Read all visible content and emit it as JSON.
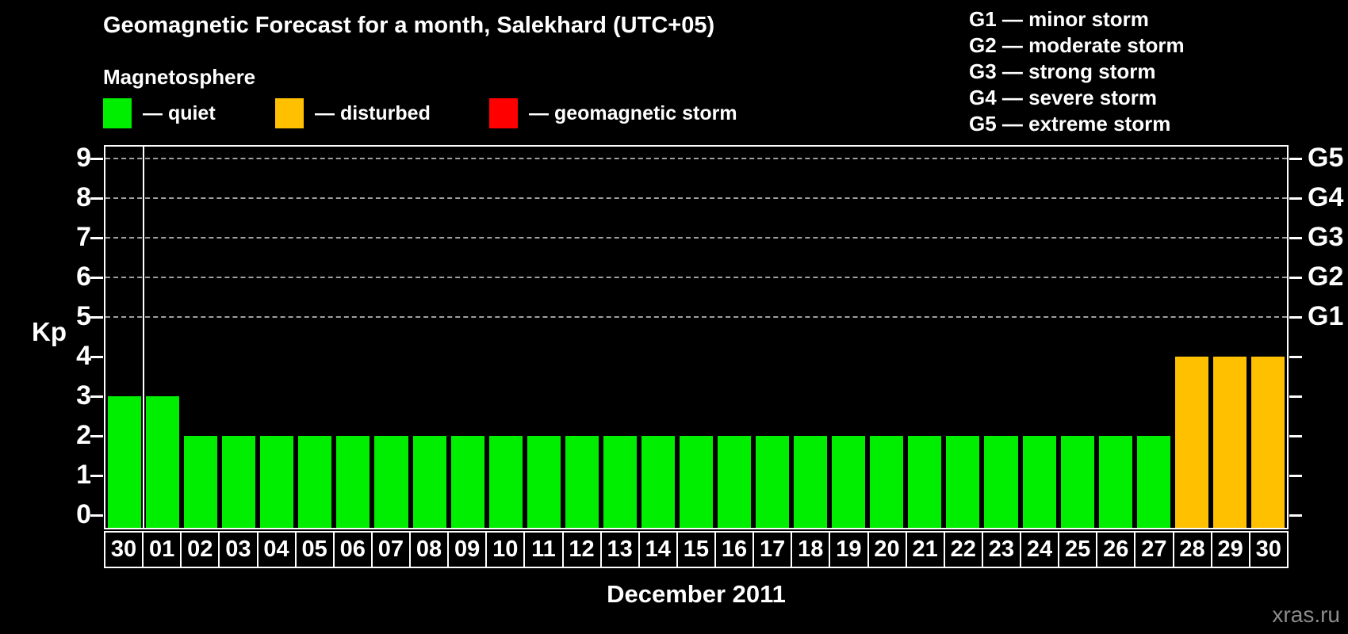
{
  "header": {
    "title": "Geomagnetic Forecast for a month, Salekhard (UTC+05)",
    "subtitle": "Magnetosphere",
    "legend": [
      {
        "key": "quiet",
        "label": "— quiet"
      },
      {
        "key": "disturbed",
        "label": "— disturbed"
      },
      {
        "key": "storm",
        "label": "— geomagnetic storm"
      }
    ]
  },
  "g_legend": {
    "items": [
      "G1 — minor storm",
      "G2 — moderate storm",
      "G3 — strong storm",
      "G4 — severe storm",
      "G5 — extreme storm"
    ]
  },
  "chart_data": {
    "type": "bar",
    "title": "Geomagnetic Forecast for a month, Salekhard (UTC+05)",
    "xlabel": "December 2011",
    "ylabel": "Kp",
    "ylim": [
      0,
      9
    ],
    "yticks": [
      0,
      1,
      2,
      3,
      4,
      5,
      6,
      7,
      8,
      9
    ],
    "gridlines": [
      5,
      6,
      7,
      8,
      9
    ],
    "right_axis_labels": [
      {
        "value": 5,
        "label": "G1"
      },
      {
        "value": 6,
        "label": "G2"
      },
      {
        "value": 7,
        "label": "G3"
      },
      {
        "value": 8,
        "label": "G4"
      },
      {
        "value": 9,
        "label": "G5"
      }
    ],
    "categories": [
      "30",
      "01",
      "02",
      "03",
      "04",
      "05",
      "06",
      "07",
      "08",
      "09",
      "10",
      "11",
      "12",
      "13",
      "14",
      "15",
      "16",
      "17",
      "18",
      "19",
      "20",
      "21",
      "22",
      "23",
      "24",
      "25",
      "26",
      "27",
      "28",
      "29",
      "30"
    ],
    "values": [
      3,
      3,
      2,
      2,
      2,
      2,
      2,
      2,
      2,
      2,
      2,
      2,
      2,
      2,
      2,
      2,
      2,
      2,
      2,
      2,
      2,
      2,
      2,
      2,
      2,
      2,
      2,
      2,
      4,
      4,
      4
    ],
    "statuses": [
      "quiet",
      "quiet",
      "quiet",
      "quiet",
      "quiet",
      "quiet",
      "quiet",
      "quiet",
      "quiet",
      "quiet",
      "quiet",
      "quiet",
      "quiet",
      "quiet",
      "quiet",
      "quiet",
      "quiet",
      "quiet",
      "quiet",
      "quiet",
      "quiet",
      "quiet",
      "quiet",
      "quiet",
      "quiet",
      "quiet",
      "quiet",
      "quiet",
      "disturbed",
      "disturbed",
      "disturbed"
    ],
    "separator_after_index": 0,
    "status_colors": {
      "quiet": "#00ee00",
      "disturbed": "#ffc000",
      "storm": "#ff0000"
    },
    "legend_position": "top"
  },
  "footer": {
    "month_label": "December 2011",
    "watermark": "xras.ru"
  }
}
